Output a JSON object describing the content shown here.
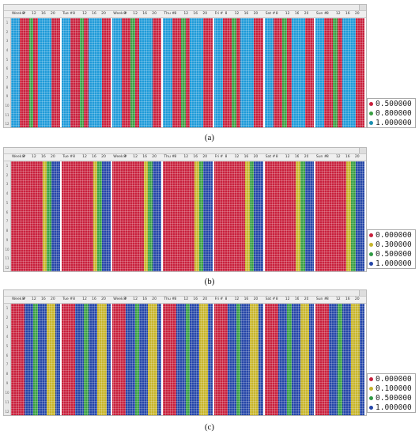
{
  "panels": [
    {
      "caption": "(a)",
      "header_labels": [
        "Week #",
        "8",
        "12",
        "16",
        "20",
        "Tue #",
        "8",
        "12",
        "16",
        "20",
        "Week #",
        "8",
        "12",
        "16",
        "20",
        "Thu #",
        "8",
        "12",
        "16",
        "20",
        "Fri #",
        "8",
        "12",
        "16",
        "20",
        "Sat #",
        "8",
        "12",
        "16",
        "20",
        "Sun #",
        "8",
        "12",
        "16",
        "20"
      ],
      "row_numbers": [
        "1",
        "2",
        "3",
        "4",
        "5",
        "6",
        "7",
        "8",
        "9",
        "10",
        "11",
        "12"
      ],
      "legend": [
        {
          "label": "0.500000",
          "color": "#c8203c"
        },
        {
          "label": "0.800000",
          "color": "#3aa043"
        },
        {
          "label": "1.000000",
          "color": "#1b8fb0"
        }
      ]
    },
    {
      "caption": "(b)",
      "header_labels": [
        "Week #",
        "8",
        "12",
        "16",
        "20",
        "Tue #",
        "8",
        "12",
        "16",
        "20",
        "Week #",
        "8",
        "12",
        "16",
        "20",
        "Thu #",
        "8",
        "12",
        "16",
        "20",
        "Fri #",
        "8",
        "12",
        "16",
        "20",
        "Sat #",
        "8",
        "12",
        "16",
        "20",
        "Sun #",
        "8",
        "12",
        "16",
        "20"
      ],
      "row_numbers": [
        "1",
        "2",
        "3",
        "4",
        "5",
        "6",
        "7",
        "8",
        "9",
        "10",
        "11",
        "12"
      ],
      "legend": [
        {
          "label": "0.000000",
          "color": "#c8203c"
        },
        {
          "label": "0.300000",
          "color": "#c7b52a"
        },
        {
          "label": "0.500000",
          "color": "#2f9a44"
        },
        {
          "label": "1.000000",
          "color": "#2546a8"
        }
      ]
    },
    {
      "caption": "(c)",
      "header_labels": [
        "Week #",
        "8",
        "12",
        "16",
        "20",
        "Tue #",
        "8",
        "12",
        "16",
        "20",
        "Week #",
        "8",
        "12",
        "16",
        "20",
        "Thu #",
        "8",
        "12",
        "16",
        "20",
        "Fri #",
        "8",
        "12",
        "16",
        "20",
        "Sat #",
        "8",
        "12",
        "16",
        "20",
        "Sun #",
        "8",
        "12",
        "16",
        "20"
      ],
      "row_numbers": [
        "1",
        "2",
        "3",
        "4",
        "5",
        "6",
        "7",
        "8",
        "9",
        "10",
        "11",
        "12"
      ],
      "legend": [
        {
          "label": "0.000000",
          "color": "#c8203c"
        },
        {
          "label": "0.100000",
          "color": "#c7b52a"
        },
        {
          "label": "0.500000",
          "color": "#2f9a44"
        },
        {
          "label": "1.000000",
          "color": "#2546a8"
        }
      ]
    }
  ],
  "day_patterns": {
    "a": [
      "blue",
      "blue",
      "red",
      "red",
      "green",
      "red",
      "blue",
      "blue",
      "blue",
      "red",
      "red"
    ],
    "b": [
      "red",
      "red",
      "red",
      "red",
      "red",
      "red",
      "red",
      "yellow",
      "green",
      "blue",
      "blue"
    ],
    "c": [
      "red",
      "red",
      "red",
      "blue",
      "blue",
      "green",
      "blue",
      "blue",
      "yellow",
      "yellow",
      "blue"
    ]
  },
  "color_map": {
    "blue_a": "#1e9ad8",
    "red": "#c8203c",
    "green": "#3aa043",
    "yellow": "#c7b52a",
    "blue": "#2546a8"
  }
}
